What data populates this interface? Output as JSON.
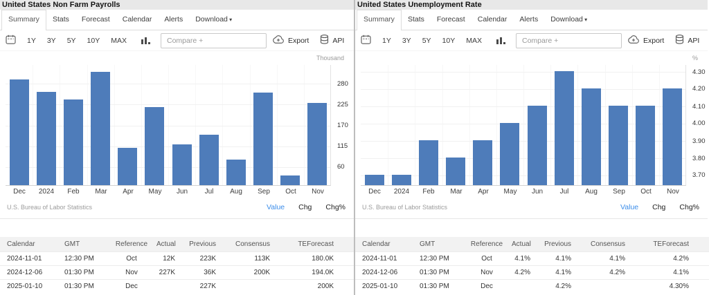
{
  "icons": {
    "kebab-menu": "⋮",
    "caret-down": "▾"
  },
  "colors": {
    "bar": "#4e7cba",
    "accent": "#3b8dea",
    "title_bg": "#e8e8e8"
  },
  "panels": [
    {
      "title": "United States Non Farm Payrolls",
      "active_tab": "Summary",
      "tabs": [
        {
          "label": "Summary"
        },
        {
          "label": "Stats"
        },
        {
          "label": "Forecast"
        },
        {
          "label": "Calendar"
        },
        {
          "label": "Alerts"
        },
        {
          "label": "Download",
          "caret": true
        }
      ],
      "toolbar": {
        "ranges": [
          "1Y",
          "3Y",
          "5Y",
          "10Y",
          "MAX"
        ],
        "compare_placeholder": "Compare +",
        "export_label": "Export",
        "api_label": "API"
      },
      "chart_data": {
        "type": "bar",
        "title": "United States Non Farm Payrolls",
        "unit": "Thousand",
        "categories": [
          "Dec",
          "2024",
          "Feb",
          "Mar",
          "Apr",
          "May",
          "Jun",
          "Jul",
          "Aug",
          "Sep",
          "Oct",
          "Nov"
        ],
        "values": [
          290,
          256,
          236,
          310,
          108,
          216,
          118,
          144,
          78,
          255,
          36,
          227
        ],
        "ylim": [
          10,
          330
        ],
        "yticks": [
          280,
          225,
          170,
          115,
          60
        ],
        "ytick_labels": [
          "280",
          "225",
          "170",
          "115",
          "60"
        ],
        "grid": true,
        "legend_position": "none",
        "source": "U.S. Bureau of Labor Statistics"
      },
      "footer_links": [
        {
          "label": "Value",
          "active": true
        },
        {
          "label": "Chg",
          "active": false
        },
        {
          "label": "Chg%",
          "active": false
        }
      ],
      "table": {
        "headers": [
          "Calendar",
          "GMT",
          "Reference",
          "Actual",
          "Previous",
          "Consensus",
          "TEForecast"
        ],
        "rows": [
          [
            "2024-11-01",
            "12:30 PM",
            "Oct",
            "12K",
            "223K",
            "113K",
            "180.0K"
          ],
          [
            "2024-12-06",
            "01:30 PM",
            "Nov",
            "227K",
            "36K",
            "200K",
            "194.0K"
          ],
          [
            "2025-01-10",
            "01:30 PM",
            "Dec",
            "",
            "227K",
            "",
            "200K"
          ]
        ]
      }
    },
    {
      "title": "United States Unemployment Rate",
      "active_tab": "Summary",
      "tabs": [
        {
          "label": "Summary"
        },
        {
          "label": "Stats"
        },
        {
          "label": "Forecast"
        },
        {
          "label": "Calendar"
        },
        {
          "label": "Alerts"
        },
        {
          "label": "Download",
          "caret": true
        }
      ],
      "toolbar": {
        "ranges": [
          "1Y",
          "3Y",
          "5Y",
          "10Y",
          "MAX"
        ],
        "compare_placeholder": "Compare +",
        "export_label": "Export",
        "api_label": "API"
      },
      "chart_data": {
        "type": "bar",
        "title": "United States Unemployment Rate",
        "unit": "%",
        "categories": [
          "Dec",
          "2024",
          "Feb",
          "Mar",
          "Apr",
          "May",
          "Jun",
          "Jul",
          "Aug",
          "Sep",
          "Oct",
          "Nov"
        ],
        "values": [
          3.7,
          3.7,
          3.9,
          3.8,
          3.9,
          4.0,
          4.1,
          4.3,
          4.2,
          4.1,
          4.1,
          4.2
        ],
        "ylim": [
          3.64,
          4.34
        ],
        "yticks": [
          4.3,
          4.2,
          4.1,
          4.0,
          3.9,
          3.8,
          3.7
        ],
        "ytick_labels": [
          "4.30",
          "4.20",
          "4.10",
          "4.00",
          "3.90",
          "3.80",
          "3.70"
        ],
        "grid": true,
        "legend_position": "none",
        "source": "U.S. Bureau of Labor Statistics"
      },
      "footer_links": [
        {
          "label": "Value",
          "active": true
        },
        {
          "label": "Chg",
          "active": false
        },
        {
          "label": "Chg%",
          "active": false
        }
      ],
      "table": {
        "headers": [
          "Calendar",
          "GMT",
          "Reference",
          "Actual",
          "Previous",
          "Consensus",
          "TEForecast"
        ],
        "rows": [
          [
            "2024-11-01",
            "12:30 PM",
            "Oct",
            "4.1%",
            "4.1%",
            "4.1%",
            "4.2%"
          ],
          [
            "2024-12-06",
            "01:30 PM",
            "Nov",
            "4.2%",
            "4.1%",
            "4.2%",
            "4.1%"
          ],
          [
            "2025-01-10",
            "01:30 PM",
            "Dec",
            "",
            "4.2%",
            "",
            "4.30%"
          ]
        ]
      }
    }
  ]
}
